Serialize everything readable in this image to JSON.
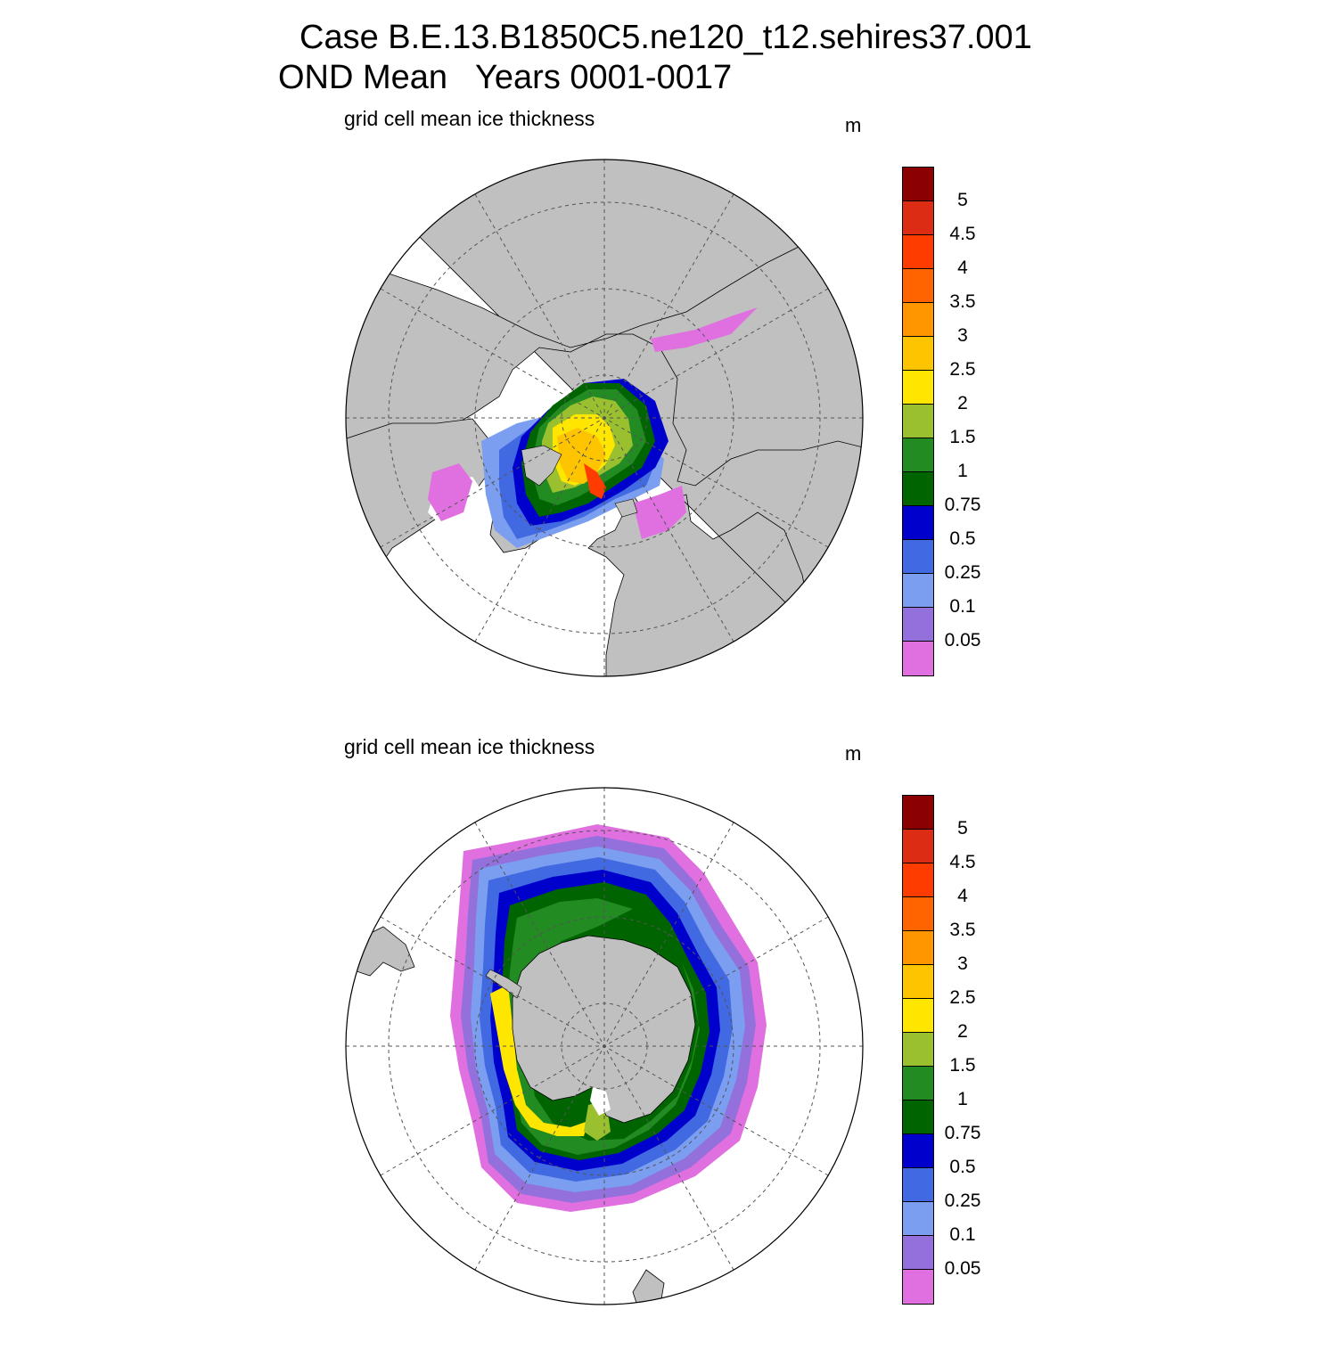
{
  "title": {
    "line1": "Case B.E.13.B1850C5.ne120_t12.sehires37.001",
    "line2": "OND Mean   Years 0001-0017"
  },
  "panels": [
    {
      "id": "north",
      "hemisphere": "Arctic (north polar stereographic)",
      "title": "grid cell mean ice thickness",
      "units": "m"
    },
    {
      "id": "south",
      "hemisphere": "Antarctic (south polar stereographic)",
      "title": "grid cell mean ice thickness",
      "units": "m"
    }
  ],
  "colorbar": {
    "labels": [
      "5",
      "4.5",
      "4",
      "3.5",
      "3",
      "2.5",
      "2",
      "1.5",
      "1",
      "0.75",
      "0.5",
      "0.25",
      "0.1",
      "0.05"
    ],
    "colors_top_to_bottom": [
      "#8b0000",
      "#dc2c14",
      "#ff3c00",
      "#ff6400",
      "#ff9600",
      "#ffc400",
      "#ffe600",
      "#9ac030",
      "#228b22",
      "#006400",
      "#0000cd",
      "#4169e1",
      "#7b9ef0",
      "#9370db",
      "#e070e0"
    ]
  },
  "map_colors": {
    "land": "#c0c0c0",
    "open_ocean": "#ffffff",
    "grid": "#555555"
  }
}
